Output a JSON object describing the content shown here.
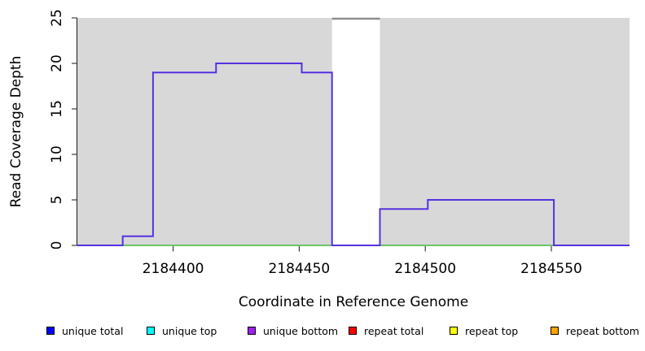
{
  "chart_data": {
    "type": "line",
    "subtype": "step",
    "title": "",
    "xlabel": "Coordinate in Reference Genome",
    "ylabel": "Read Coverage Depth",
    "xlim": [
      2184362,
      2184581
    ],
    "ylim": [
      0,
      25
    ],
    "x_ticks": [
      2184400,
      2184450,
      2184500,
      2184550
    ],
    "y_ticks": [
      0,
      5,
      10,
      15,
      20,
      25
    ],
    "grid": false,
    "colors": {
      "plot_background": "#d8d8d8",
      "axis": "#1a1a1a",
      "gap_fill": "#ffffff",
      "gap_top_marker": "#8e8e8e",
      "baseline_green": "#3fb83f",
      "coverage_line": "#5531e0"
    },
    "gap_region": {
      "x_start": 2184463,
      "x_end": 2184482,
      "top_marker_value": 25
    },
    "series": [
      {
        "name": "zero-baseline",
        "color": "#3fb83f",
        "width": 1.5,
        "points": [
          [
            2184362,
            0
          ],
          [
            2184581,
            0
          ]
        ]
      },
      {
        "name": "unique-coverage",
        "color": "#5531e0",
        "width": 2,
        "points": [
          [
            2184362,
            0
          ],
          [
            2184380,
            0
          ],
          [
            2184380,
            1
          ],
          [
            2184392,
            1
          ],
          [
            2184392,
            19
          ],
          [
            2184417,
            19
          ],
          [
            2184417,
            20
          ],
          [
            2184451,
            20
          ],
          [
            2184451,
            19
          ],
          [
            2184463,
            19
          ],
          [
            2184463,
            0
          ],
          [
            2184482,
            0
          ],
          [
            2184482,
            4
          ],
          [
            2184501,
            4
          ],
          [
            2184501,
            5
          ],
          [
            2184551,
            5
          ],
          [
            2184551,
            0
          ],
          [
            2184581,
            0
          ]
        ]
      }
    ],
    "legend": {
      "position": "bottom",
      "items": [
        {
          "label": "unique total",
          "color": "#0000ff"
        },
        {
          "label": "unique top",
          "color": "#00ffff"
        },
        {
          "label": "unique bottom",
          "color": "#a020f0"
        },
        {
          "label": "repeat total",
          "color": "#ff0000"
        },
        {
          "label": "repeat top",
          "color": "#ffff00"
        },
        {
          "label": "repeat bottom",
          "color": "#ffa500"
        }
      ]
    }
  }
}
